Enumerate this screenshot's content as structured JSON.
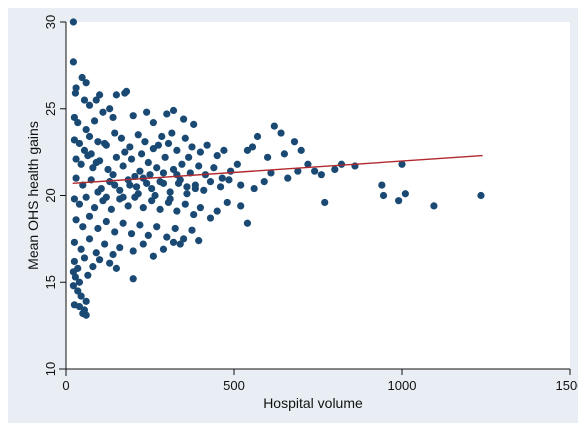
{
  "colors": {
    "outer_background": "#e8eef3",
    "plot_background": "#ffffff",
    "points": "#1a4a73",
    "fit_line": "#b2292e",
    "axis": "#111111"
  },
  "chart_data": {
    "type": "scatter",
    "title": "",
    "xlabel": "Hospital volume",
    "ylabel": "Mean OHS health gains",
    "xlim": [
      0,
      1500
    ],
    "ylim": [
      10,
      30
    ],
    "xticks": [
      0,
      500,
      1000,
      1500
    ],
    "yticks": [
      10,
      15,
      20,
      25,
      30
    ],
    "grid": false,
    "legend": "none",
    "fit_line": {
      "x": [
        20,
        1240
      ],
      "y": [
        20.7,
        22.3
      ]
    },
    "points": [
      [
        22,
        30.0
      ],
      [
        22,
        27.7
      ],
      [
        30,
        26.2
      ],
      [
        48,
        26.8
      ],
      [
        60,
        26.5
      ],
      [
        28,
        25.9
      ],
      [
        55,
        25.5
      ],
      [
        70,
        25.2
      ],
      [
        90,
        25.5
      ],
      [
        100,
        25.8
      ],
      [
        150,
        25.8
      ],
      [
        175,
        25.9
      ],
      [
        180,
        26.0
      ],
      [
        130,
        25.0
      ],
      [
        25,
        24.5
      ],
      [
        35,
        24.2
      ],
      [
        60,
        23.8
      ],
      [
        85,
        24.3
      ],
      [
        110,
        24.8
      ],
      [
        140,
        24.5
      ],
      [
        200,
        24.6
      ],
      [
        240,
        24.8
      ],
      [
        260,
        24.2
      ],
      [
        300,
        24.7
      ],
      [
        320,
        24.9
      ],
      [
        350,
        24.4
      ],
      [
        380,
        24.1
      ],
      [
        25,
        23.2
      ],
      [
        40,
        23.0
      ],
      [
        55,
        22.6
      ],
      [
        70,
        23.4
      ],
      [
        95,
        23.1
      ],
      [
        120,
        22.9
      ],
      [
        145,
        23.6
      ],
      [
        165,
        23.3
      ],
      [
        190,
        22.8
      ],
      [
        215,
        23.5
      ],
      [
        235,
        23.1
      ],
      [
        260,
        22.7
      ],
      [
        285,
        23.4
      ],
      [
        305,
        23.0
      ],
      [
        330,
        22.6
      ],
      [
        355,
        23.3
      ],
      [
        375,
        22.8
      ],
      [
        400,
        22.5
      ],
      [
        420,
        22.9
      ],
      [
        450,
        22.3
      ],
      [
        470,
        22.6
      ],
      [
        30,
        22.1
      ],
      [
        45,
        21.8
      ],
      [
        65,
        22.3
      ],
      [
        80,
        21.6
      ],
      [
        100,
        22.0
      ],
      [
        125,
        21.5
      ],
      [
        150,
        22.2
      ],
      [
        170,
        21.7
      ],
      [
        195,
        22.1
      ],
      [
        220,
        21.4
      ],
      [
        245,
        21.9
      ],
      [
        270,
        21.6
      ],
      [
        295,
        22.2
      ],
      [
        320,
        21.5
      ],
      [
        345,
        21.8
      ],
      [
        370,
        21.3
      ],
      [
        395,
        21.7
      ],
      [
        415,
        21.2
      ],
      [
        440,
        21.6
      ],
      [
        465,
        21.0
      ],
      [
        490,
        21.4
      ],
      [
        510,
        21.8
      ],
      [
        540,
        22.6
      ],
      [
        570,
        23.4
      ],
      [
        555,
        22.8
      ],
      [
        600,
        22.2
      ],
      [
        620,
        24.0
      ],
      [
        640,
        23.6
      ],
      [
        650,
        22.4
      ],
      [
        680,
        23.1
      ],
      [
        700,
        22.6
      ],
      [
        720,
        21.8
      ],
      [
        740,
        21.4
      ],
      [
        760,
        21.2
      ],
      [
        30,
        21.0
      ],
      [
        50,
        20.6
      ],
      [
        75,
        20.9
      ],
      [
        105,
        20.4
      ],
      [
        130,
        20.8
      ],
      [
        160,
        20.3
      ],
      [
        185,
        20.9
      ],
      [
        210,
        20.5
      ],
      [
        230,
        21.0
      ],
      [
        255,
        20.4
      ],
      [
        280,
        20.8
      ],
      [
        310,
        20.2
      ],
      [
        335,
        20.7
      ],
      [
        360,
        20.1
      ],
      [
        385,
        20.6
      ],
      [
        410,
        20.3
      ],
      [
        430,
        20.8
      ],
      [
        460,
        20.5
      ],
      [
        485,
        20.9
      ],
      [
        520,
        20.6
      ],
      [
        560,
        20.4
      ],
      [
        590,
        20.8
      ],
      [
        610,
        21.3
      ],
      [
        660,
        21.0
      ],
      [
        690,
        21.4
      ],
      [
        770,
        19.6
      ],
      [
        800,
        21.5
      ],
      [
        820,
        21.8
      ],
      [
        860,
        21.7
      ],
      [
        940,
        20.6
      ],
      [
        945,
        20.0
      ],
      [
        990,
        19.7
      ],
      [
        1000,
        21.8
      ],
      [
        1010,
        20.1
      ],
      [
        1095,
        19.4
      ],
      [
        1235,
        20.0
      ],
      [
        25,
        19.8
      ],
      [
        40,
        19.5
      ],
      [
        60,
        19.9
      ],
      [
        85,
        19.3
      ],
      [
        110,
        19.7
      ],
      [
        135,
        19.2
      ],
      [
        160,
        19.8
      ],
      [
        185,
        19.4
      ],
      [
        205,
        19.9
      ],
      [
        230,
        19.3
      ],
      [
        255,
        19.7
      ],
      [
        280,
        19.2
      ],
      [
        305,
        19.6
      ],
      [
        330,
        19.1
      ],
      [
        355,
        19.5
      ],
      [
        380,
        18.9
      ],
      [
        400,
        19.3
      ],
      [
        430,
        18.7
      ],
      [
        450,
        19.1
      ],
      [
        480,
        19.6
      ],
      [
        520,
        19.4
      ],
      [
        540,
        18.4
      ],
      [
        30,
        18.6
      ],
      [
        50,
        18.2
      ],
      [
        70,
        18.8
      ],
      [
        95,
        18.1
      ],
      [
        120,
        18.5
      ],
      [
        145,
        17.9
      ],
      [
        170,
        18.4
      ],
      [
        195,
        17.8
      ],
      [
        220,
        18.3
      ],
      [
        245,
        17.7
      ],
      [
        270,
        18.2
      ],
      [
        300,
        17.6
      ],
      [
        325,
        18.1
      ],
      [
        350,
        17.5
      ],
      [
        375,
        18.0
      ],
      [
        395,
        17.4
      ],
      [
        25,
        17.3
      ],
      [
        45,
        16.9
      ],
      [
        70,
        17.5
      ],
      [
        90,
        16.7
      ],
      [
        115,
        17.2
      ],
      [
        140,
        16.6
      ],
      [
        160,
        17.0
      ],
      [
        200,
        16.8
      ],
      [
        230,
        17.2
      ],
      [
        260,
        16.5
      ],
      [
        290,
        16.9
      ],
      [
        320,
        17.3
      ],
      [
        340,
        17.2
      ],
      [
        25,
        16.2
      ],
      [
        35,
        15.8
      ],
      [
        55,
        16.4
      ],
      [
        80,
        15.9
      ],
      [
        100,
        16.3
      ],
      [
        130,
        16.1
      ],
      [
        150,
        15.8
      ],
      [
        22,
        15.6
      ],
      [
        28,
        15.3
      ],
      [
        40,
        15.0
      ],
      [
        65,
        15.4
      ],
      [
        200,
        15.2
      ],
      [
        22,
        14.8
      ],
      [
        35,
        14.5
      ],
      [
        45,
        14.2
      ],
      [
        60,
        13.9
      ],
      [
        25,
        13.7
      ],
      [
        40,
        13.6
      ],
      [
        55,
        13.4
      ],
      [
        50,
        13.2
      ],
      [
        60,
        13.1
      ],
      [
        75,
        22.4
      ],
      [
        90,
        21.9
      ],
      [
        115,
        23.0
      ],
      [
        140,
        21.2
      ],
      [
        175,
        22.5
      ],
      [
        205,
        21.1
      ],
      [
        225,
        22.4
      ],
      [
        250,
        21.2
      ],
      [
        275,
        22.9
      ],
      [
        290,
        20.7
      ],
      [
        315,
        23.6
      ],
      [
        340,
        20.9
      ],
      [
        365,
        22.2
      ],
      [
        385,
        20.4
      ],
      [
        95,
        20.2
      ],
      [
        120,
        19.9
      ],
      [
        145,
        20.6
      ],
      [
        170,
        19.9
      ],
      [
        190,
        20.6
      ],
      [
        215,
        20.1
      ],
      [
        240,
        20.7
      ],
      [
        265,
        20.0
      ],
      [
        290,
        21.3
      ],
      [
        310,
        19.8
      ],
      [
        330,
        21.2
      ],
      [
        360,
        20.5
      ]
    ]
  }
}
